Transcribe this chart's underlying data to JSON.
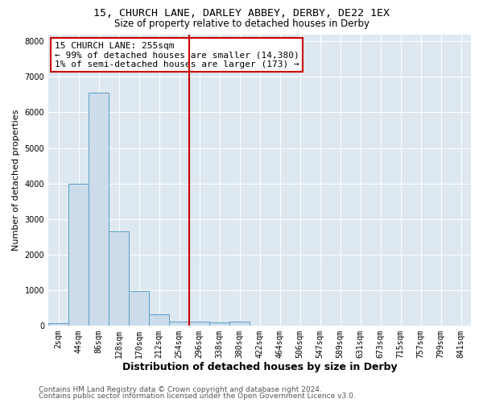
{
  "title": "15, CHURCH LANE, DARLEY ABBEY, DERBY, DE22 1EX",
  "subtitle": "Size of property relative to detached houses in Derby",
  "xlabel": "Distribution of detached houses by size in Derby",
  "ylabel": "Number of detached properties",
  "bar_color": "#ccdcea",
  "bar_edge_color": "#5b9ec9",
  "background_color": "#dde8f0",
  "grid_color": "white",
  "categories": [
    "2sqm",
    "44sqm",
    "86sqm",
    "128sqm",
    "170sqm",
    "212sqm",
    "254sqm",
    "296sqm",
    "338sqm",
    "380sqm",
    "422sqm",
    "464sqm",
    "506sqm",
    "547sqm",
    "589sqm",
    "631sqm",
    "673sqm",
    "715sqm",
    "757sqm",
    "799sqm",
    "841sqm"
  ],
  "values": [
    75,
    4000,
    6550,
    2650,
    980,
    320,
    115,
    115,
    80,
    100,
    0,
    0,
    0,
    0,
    0,
    0,
    0,
    0,
    0,
    0,
    0
  ],
  "red_line_x": 6.5,
  "annotation_line1": "15 CHURCH LANE: 255sqm",
  "annotation_line2": "← 99% of detached houses are smaller (14,380)",
  "annotation_line3": "1% of semi-detached houses are larger (173) →",
  "annotation_box_color": "white",
  "annotation_border_color": "#cc0000",
  "ylim": [
    0,
    8200
  ],
  "yticks": [
    0,
    1000,
    2000,
    3000,
    4000,
    5000,
    6000,
    7000,
    8000
  ],
  "footer_line1": "Contains HM Land Registry data © Crown copyright and database right 2024.",
  "footer_line2": "Contains public sector information licensed under the Open Government Licence v3.0.",
  "title_fontsize": 9.5,
  "subtitle_fontsize": 8.5,
  "ylabel_fontsize": 8,
  "xlabel_fontsize": 9,
  "annotation_fontsize": 8,
  "footer_fontsize": 6.5,
  "tick_fontsize": 7
}
